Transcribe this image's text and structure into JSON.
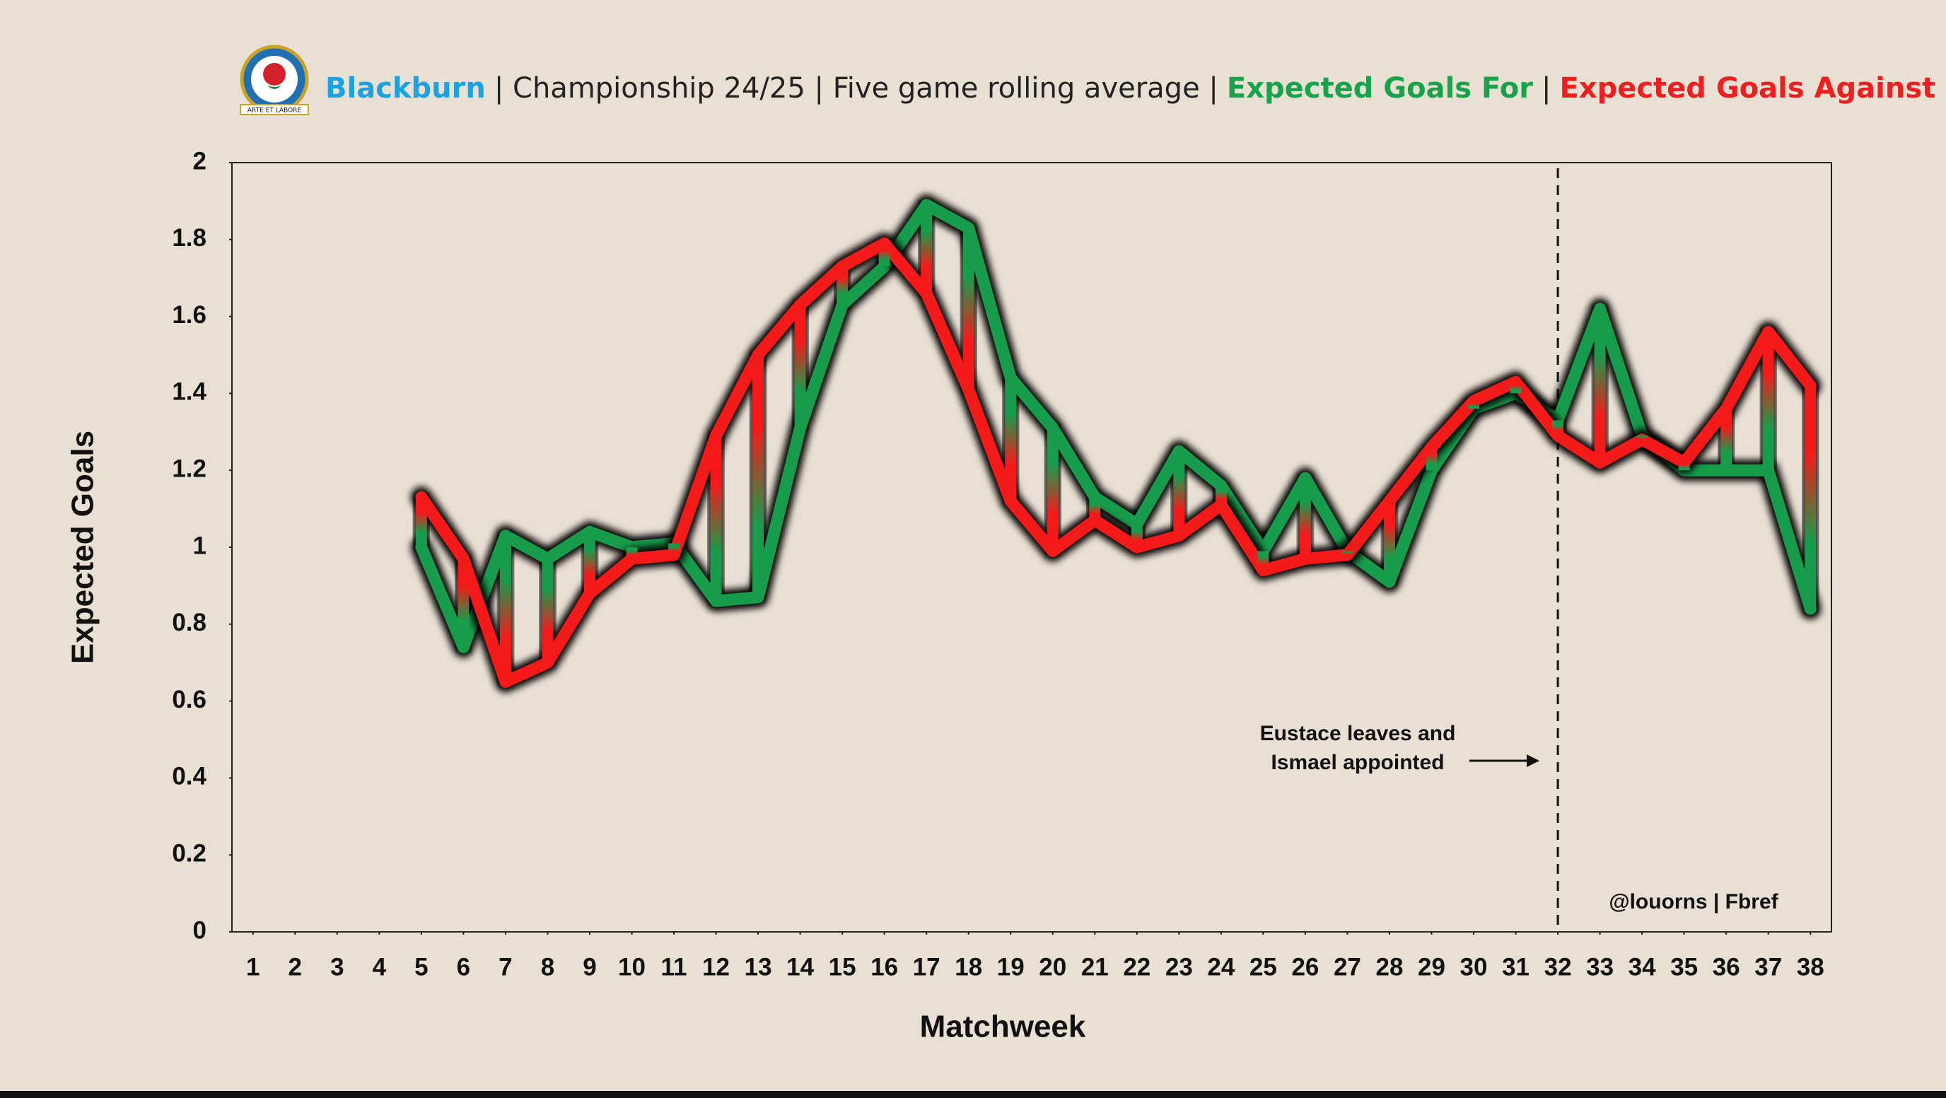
{
  "chart_data": {
    "type": "line",
    "title_parts": [
      {
        "text": "Blackburn",
        "color": "#1aa3e0"
      },
      {
        "text": "| Championship 24/25 | Five game rolling average |",
        "color": "#222222"
      },
      {
        "text": "Expected Goals For",
        "color": "#16a34a"
      },
      {
        "text": "|",
        "color": "#222222"
      },
      {
        "text": "Expected Goals Against",
        "color": "#f01e1e"
      }
    ],
    "logo_motto": "ARTE ET LABORE",
    "x_label": "Matchweek",
    "y_label": "Expected Goals",
    "x": [
      5,
      6,
      7,
      8,
      9,
      10,
      11,
      12,
      13,
      14,
      15,
      16,
      17,
      18,
      19,
      20,
      21,
      22,
      23,
      24,
      25,
      26,
      27,
      28,
      29,
      30,
      31,
      32,
      33,
      34,
      35,
      36,
      37,
      38
    ],
    "series": [
      {
        "name": "Expected Goals For",
        "color": "#179c4b",
        "values": [
          1.0,
          0.74,
          1.03,
          0.97,
          1.04,
          1.0,
          1.01,
          0.86,
          0.87,
          1.31,
          1.63,
          1.73,
          1.89,
          1.83,
          1.44,
          1.31,
          1.13,
          1.06,
          1.25,
          1.16,
          0.99,
          1.18,
          0.99,
          0.91,
          1.2,
          1.36,
          1.4,
          1.33,
          1.62,
          1.29,
          1.2,
          1.2,
          1.2,
          0.84
        ]
      },
      {
        "name": "Expected Goals Against",
        "color": "#f51a1a",
        "values": [
          1.13,
          0.97,
          0.65,
          0.7,
          0.88,
          0.97,
          0.98,
          1.29,
          1.5,
          1.63,
          1.73,
          1.79,
          1.66,
          1.41,
          1.12,
          0.99,
          1.07,
          1.0,
          1.03,
          1.11,
          0.94,
          0.97,
          0.98,
          1.12,
          1.26,
          1.38,
          1.43,
          1.29,
          1.22,
          1.28,
          1.22,
          1.36,
          1.56,
          1.42
        ]
      }
    ],
    "xlim": [
      0.5,
      38.5
    ],
    "xticks": [
      1,
      2,
      3,
      4,
      5,
      6,
      7,
      8,
      9,
      10,
      11,
      12,
      13,
      14,
      15,
      16,
      17,
      18,
      19,
      20,
      21,
      22,
      23,
      24,
      25,
      26,
      27,
      28,
      29,
      30,
      31,
      32,
      33,
      34,
      35,
      36,
      37,
      38
    ],
    "ylim": [
      0,
      2
    ],
    "yticks": [
      0,
      0.2,
      0.4,
      0.6,
      0.8,
      1,
      1.2,
      1.4,
      1.6,
      1.8,
      2
    ],
    "vline": {
      "x": 32,
      "text": [
        "Eustace leaves and",
        "Ismael appointed"
      ]
    },
    "credit": "@louorns | Fbref"
  }
}
